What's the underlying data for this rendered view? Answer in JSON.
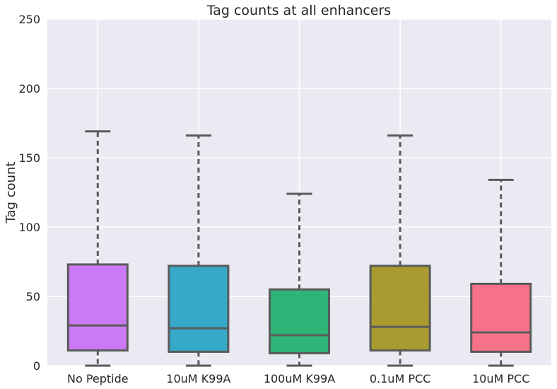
{
  "chart_data": {
    "type": "boxplot",
    "title": "Tag counts at all enhancers",
    "xlabel": "",
    "ylabel": "Tag count",
    "ylim": [
      0,
      250
    ],
    "yticks": [
      0,
      50,
      100,
      150,
      200,
      250
    ],
    "grid": true,
    "background": "#EAEAF2",
    "grid_color": "#FFFFFF",
    "line_color": "#5A5A5A",
    "categories": [
      "No Peptide",
      "10uM K99A",
      "100uM K99A",
      "0.1uM PCC",
      "10uM PCC"
    ],
    "boxes": [
      {
        "label": "No Peptide",
        "whisker_low": 0,
        "q1": 11,
        "median": 29,
        "q3": 73,
        "whisker_high": 169,
        "color": "#CC79F5"
      },
      {
        "label": "10uM K99A",
        "whisker_low": 0,
        "q1": 10,
        "median": 27,
        "q3": 72,
        "whisker_high": 166,
        "color": "#36A9C8"
      },
      {
        "label": "100uM K99A",
        "whisker_low": 0,
        "q1": 9,
        "median": 22,
        "q3": 55,
        "whisker_high": 124,
        "color": "#2FB477"
      },
      {
        "label": "0.1uM PCC",
        "whisker_low": 0,
        "q1": 11,
        "median": 28,
        "q3": 72,
        "whisker_high": 166,
        "color": "#A99B2F"
      },
      {
        "label": "10uM PCC",
        "whisker_low": 0,
        "q1": 10,
        "median": 24,
        "q3": 59,
        "whisker_high": 134,
        "color": "#F77189"
      }
    ]
  }
}
